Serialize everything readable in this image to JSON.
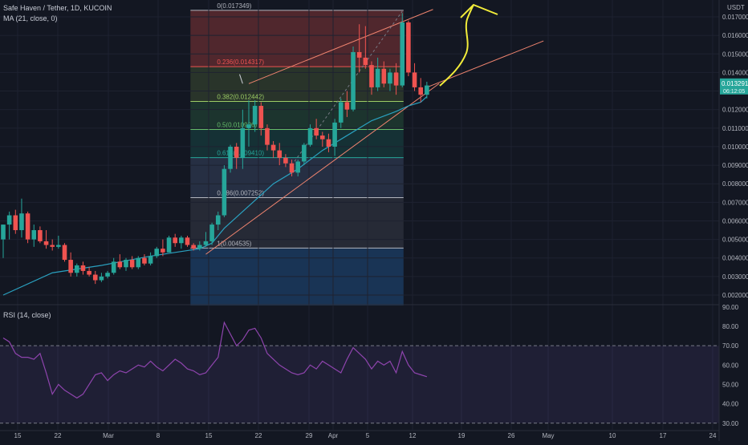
{
  "header": {
    "title": "Safe Haven / Tether, 1D, KUCOIN",
    "ma_label": "MA (21, close, 0)",
    "rsi_label": "RSI (14, close)",
    "currency": "USDT"
  },
  "colors": {
    "background": "#131722",
    "up": "#26a69a",
    "down": "#ef5350",
    "ma": "#2aa1c0",
    "rsi": "#8e44ad",
    "trendline": "#f0846f",
    "annotation": "#f2ec3a"
  },
  "chart_data": {
    "type": "candlestick",
    "price_axis": {
      "ticks": [
        "0.017000",
        "0.016000",
        "0.015000",
        "0.014000",
        "0.013000",
        "0.012000",
        "0.011000",
        "0.010000",
        "0.009000",
        "0.008000",
        "0.007000",
        "0.006000",
        "0.005000",
        "0.004000",
        "0.003000",
        "0.002000"
      ],
      "last_price": "0.013291",
      "last_price_sub": "06:12:05"
    },
    "x_axis": {
      "ticks": [
        "15",
        "22",
        "Mar",
        "8",
        "15",
        "22",
        "29",
        "Apr",
        "5",
        "12",
        "19",
        "26",
        "May",
        "10",
        "17",
        "24"
      ]
    },
    "fibonacci": [
      {
        "label": "0(0.017349)",
        "value": 0.017349,
        "color": "#b2b5be",
        "fill": "#5c2a2f"
      },
      {
        "label": "0.236(0.014317)",
        "value": 0.014317,
        "color": "#ef5350",
        "fill": "#2e3a2b"
      },
      {
        "label": "0.382(0.012442)",
        "value": 0.012442,
        "color": "#9ccc65",
        "fill": "#1f3a30"
      },
      {
        "label": "0.5(0.010926)",
        "value": 0.010926,
        "color": "#66bb6a",
        "fill": "#163638"
      },
      {
        "label": "0.618(0.009410)",
        "value": 0.00941,
        "color": "#26a69a",
        "fill": "#2a3449"
      },
      {
        "label": "0.786(0.007252)",
        "value": 0.007252,
        "color": "#b2b5be",
        "fill": "#2a2e39"
      },
      {
        "label": "1(0.004535)",
        "value": 0.004535,
        "color": "#b2b5be",
        "fill": "#1b3a5e"
      }
    ],
    "candles": [
      {
        "o": 0.005,
        "h": 0.0058,
        "l": 0.004,
        "c": 0.0058
      },
      {
        "o": 0.0058,
        "h": 0.0065,
        "l": 0.005,
        "c": 0.0063
      },
      {
        "o": 0.0063,
        "h": 0.0066,
        "l": 0.0053,
        "c": 0.0055
      },
      {
        "o": 0.0055,
        "h": 0.0072,
        "l": 0.0051,
        "c": 0.0064
      },
      {
        "o": 0.0064,
        "h": 0.0065,
        "l": 0.0048,
        "c": 0.005
      },
      {
        "o": 0.005,
        "h": 0.0058,
        "l": 0.0046,
        "c": 0.0055
      },
      {
        "o": 0.0055,
        "h": 0.0057,
        "l": 0.0048,
        "c": 0.0049
      },
      {
        "o": 0.0049,
        "h": 0.0055,
        "l": 0.0045,
        "c": 0.0047
      },
      {
        "o": 0.0047,
        "h": 0.005,
        "l": 0.0044,
        "c": 0.0046
      },
      {
        "o": 0.0046,
        "h": 0.0052,
        "l": 0.0045,
        "c": 0.0047
      },
      {
        "o": 0.0047,
        "h": 0.0048,
        "l": 0.0038,
        "c": 0.0039
      },
      {
        "o": 0.0039,
        "h": 0.0043,
        "l": 0.003,
        "c": 0.0032
      },
      {
        "o": 0.0032,
        "h": 0.0037,
        "l": 0.003,
        "c": 0.0036
      },
      {
        "o": 0.0036,
        "h": 0.0038,
        "l": 0.0031,
        "c": 0.0033
      },
      {
        "o": 0.0033,
        "h": 0.0035,
        "l": 0.003,
        "c": 0.0031
      },
      {
        "o": 0.0031,
        "h": 0.0033,
        "l": 0.0026,
        "c": 0.0028
      },
      {
        "o": 0.0028,
        "h": 0.0032,
        "l": 0.0027,
        "c": 0.003
      },
      {
        "o": 0.003,
        "h": 0.0033,
        "l": 0.0029,
        "c": 0.0032
      },
      {
        "o": 0.0032,
        "h": 0.004,
        "l": 0.0031,
        "c": 0.0038
      },
      {
        "o": 0.0038,
        "h": 0.0042,
        "l": 0.0034,
        "c": 0.0035
      },
      {
        "o": 0.0035,
        "h": 0.004,
        "l": 0.0033,
        "c": 0.0039
      },
      {
        "o": 0.0039,
        "h": 0.0041,
        "l": 0.0034,
        "c": 0.0035
      },
      {
        "o": 0.0035,
        "h": 0.0041,
        "l": 0.0034,
        "c": 0.004
      },
      {
        "o": 0.004,
        "h": 0.0042,
        "l": 0.0036,
        "c": 0.0037
      },
      {
        "o": 0.0037,
        "h": 0.0043,
        "l": 0.0036,
        "c": 0.0041
      },
      {
        "o": 0.0041,
        "h": 0.0046,
        "l": 0.004,
        "c": 0.0045
      },
      {
        "o": 0.0045,
        "h": 0.005,
        "l": 0.0041,
        "c": 0.0043
      },
      {
        "o": 0.0043,
        "h": 0.0052,
        "l": 0.0043,
        "c": 0.0051
      },
      {
        "o": 0.0051,
        "h": 0.0053,
        "l": 0.0046,
        "c": 0.0048
      },
      {
        "o": 0.0048,
        "h": 0.0052,
        "l": 0.0045,
        "c": 0.0051
      },
      {
        "o": 0.0051,
        "h": 0.0052,
        "l": 0.0046,
        "c": 0.0047
      },
      {
        "o": 0.0047,
        "h": 0.0048,
        "l": 0.0044,
        "c": 0.0045
      },
      {
        "o": 0.0045,
        "h": 0.0049,
        "l": 0.0044,
        "c": 0.0047
      },
      {
        "o": 0.0047,
        "h": 0.0054,
        "l": 0.0046,
        "c": 0.0049
      },
      {
        "o": 0.0049,
        "h": 0.0059,
        "l": 0.0047,
        "c": 0.0058
      },
      {
        "o": 0.0058,
        "h": 0.0065,
        "l": 0.0055,
        "c": 0.0063
      },
      {
        "o": 0.0063,
        "h": 0.009,
        "l": 0.0062,
        "c": 0.0088
      },
      {
        "o": 0.0088,
        "h": 0.0101,
        "l": 0.0086,
        "c": 0.01
      },
      {
        "o": 0.01,
        "h": 0.0102,
        "l": 0.0088,
        "c": 0.0094
      },
      {
        "o": 0.0094,
        "h": 0.012,
        "l": 0.0088,
        "c": 0.011
      },
      {
        "o": 0.011,
        "h": 0.0125,
        "l": 0.01,
        "c": 0.0112
      },
      {
        "o": 0.0112,
        "h": 0.0125,
        "l": 0.0108,
        "c": 0.0122
      },
      {
        "o": 0.0122,
        "h": 0.0124,
        "l": 0.0106,
        "c": 0.011
      },
      {
        "o": 0.011,
        "h": 0.0112,
        "l": 0.0098,
        "c": 0.0101
      },
      {
        "o": 0.0101,
        "h": 0.0103,
        "l": 0.0094,
        "c": 0.0098
      },
      {
        "o": 0.0098,
        "h": 0.0102,
        "l": 0.009,
        "c": 0.0094
      },
      {
        "o": 0.0094,
        "h": 0.0096,
        "l": 0.0089,
        "c": 0.0091
      },
      {
        "o": 0.0091,
        "h": 0.0093,
        "l": 0.0084,
        "c": 0.0086
      },
      {
        "o": 0.0086,
        "h": 0.0093,
        "l": 0.0084,
        "c": 0.0092
      },
      {
        "o": 0.0092,
        "h": 0.0102,
        "l": 0.009,
        "c": 0.0101
      },
      {
        "o": 0.0101,
        "h": 0.0112,
        "l": 0.01,
        "c": 0.011
      },
      {
        "o": 0.011,
        "h": 0.0115,
        "l": 0.0104,
        "c": 0.0106
      },
      {
        "o": 0.0106,
        "h": 0.0108,
        "l": 0.01,
        "c": 0.0104
      },
      {
        "o": 0.0104,
        "h": 0.0107,
        "l": 0.0097,
        "c": 0.01
      },
      {
        "o": 0.01,
        "h": 0.0115,
        "l": 0.0095,
        "c": 0.0113
      },
      {
        "o": 0.0113,
        "h": 0.0126,
        "l": 0.011,
        "c": 0.0124
      },
      {
        "o": 0.0124,
        "h": 0.013,
        "l": 0.0116,
        "c": 0.012
      },
      {
        "o": 0.012,
        "h": 0.0154,
        "l": 0.0119,
        "c": 0.0151
      },
      {
        "o": 0.0151,
        "h": 0.0166,
        "l": 0.014,
        "c": 0.0148
      },
      {
        "o": 0.0148,
        "h": 0.0165,
        "l": 0.0142,
        "c": 0.0144
      },
      {
        "o": 0.0144,
        "h": 0.0146,
        "l": 0.0128,
        "c": 0.0132
      },
      {
        "o": 0.0132,
        "h": 0.0148,
        "l": 0.013,
        "c": 0.0142
      },
      {
        "o": 0.0142,
        "h": 0.0146,
        "l": 0.0132,
        "c": 0.0134
      },
      {
        "o": 0.0134,
        "h": 0.0142,
        "l": 0.013,
        "c": 0.014
      },
      {
        "o": 0.014,
        "h": 0.0145,
        "l": 0.0128,
        "c": 0.0133
      },
      {
        "o": 0.0133,
        "h": 0.0172,
        "l": 0.0132,
        "c": 0.0167
      },
      {
        "o": 0.0167,
        "h": 0.0168,
        "l": 0.0138,
        "c": 0.014
      },
      {
        "o": 0.014,
        "h": 0.0145,
        "l": 0.013,
        "c": 0.0132
      },
      {
        "o": 0.0132,
        "h": 0.0137,
        "l": 0.0124,
        "c": 0.0128
      },
      {
        "o": 0.0128,
        "h": 0.0135,
        "l": 0.0126,
        "c": 0.0133
      }
    ],
    "ma21": [
      [
        0,
        0.002
      ],
      [
        8,
        0.0032
      ],
      [
        16,
        0.0036
      ],
      [
        24,
        0.0041
      ],
      [
        28,
        0.0043
      ],
      [
        32,
        0.0045
      ],
      [
        34,
        0.0048
      ],
      [
        36,
        0.0056
      ],
      [
        40,
        0.0068
      ],
      [
        44,
        0.008
      ],
      [
        48,
        0.0088
      ],
      [
        52,
        0.0098
      ],
      [
        56,
        0.0106
      ],
      [
        60,
        0.0114
      ],
      [
        64,
        0.0119
      ],
      [
        66,
        0.0122
      ],
      [
        68,
        0.0124
      ],
      [
        69,
        0.0127
      ]
    ],
    "rsi": {
      "axis_ticks": [
        "90.00",
        "80.00",
        "70.00",
        "60.00",
        "50.00",
        "40.00",
        "30.00"
      ],
      "ylim": [
        27,
        92
      ],
      "bands": [
        30,
        70
      ],
      "values": [
        74,
        72,
        66,
        64,
        64,
        63,
        66,
        56,
        45,
        50,
        47,
        45,
        43,
        45,
        50,
        55,
        56,
        52,
        55,
        57,
        56,
        58,
        60,
        59,
        62,
        59,
        57,
        60,
        63,
        61,
        58,
        57,
        55,
        56,
        60,
        64,
        82,
        76,
        70,
        73,
        78,
        79,
        74,
        66,
        63,
        60,
        58,
        56,
        55,
        56,
        60,
        58,
        62,
        60,
        58,
        56,
        63,
        69,
        66,
        63,
        58,
        62,
        60,
        62,
        56,
        67,
        60,
        56,
        55,
        54
      ]
    },
    "trendlines": [
      {
        "x1": 33,
        "y1": 0.0042,
        "x2": 71,
        "y2": 0.0134
      },
      {
        "x1": 40,
        "y1": 0.0134,
        "x2": 70,
        "y2": 0.0174
      },
      {
        "x1": 69,
        "y1": 0.0132,
        "x2": 88,
        "y2": 0.0157
      }
    ],
    "dotted_line": {
      "x1": 47,
      "y1": 0.009,
      "x2": 65,
      "y2": 0.0173
    }
  }
}
